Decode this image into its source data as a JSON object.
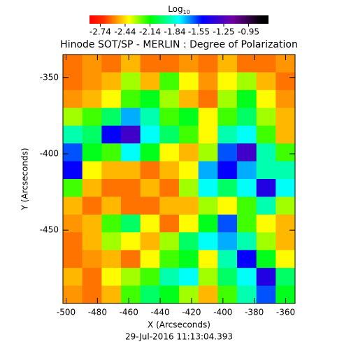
{
  "chart_data": {
    "type": "heatmap",
    "title": "Hinode SOT/SP - MERLIN : Degree of Polarization",
    "x_label": "X (Arcseconds)",
    "y_label": "Y (Arcseconds)",
    "footer": "29-Jul-2016 11:13:04.393",
    "colorbar_label": "Log",
    "colorbar_label_sub": "10",
    "colorbar_ticks": [
      -2.74,
      -2.44,
      -2.14,
      -1.84,
      -1.55,
      -1.25,
      -0.95
    ],
    "clim": [
      -2.87,
      -0.71
    ],
    "colormap": [
      [
        0,
        "#ff0000"
      ],
      [
        0.08,
        "#ff3000"
      ],
      [
        0.22,
        "#ffff00"
      ],
      [
        0.34,
        "#00ff00"
      ],
      [
        0.5,
        "#00ffff"
      ],
      [
        0.63,
        "#0000ff"
      ],
      [
        0.8,
        "#7000a0"
      ],
      [
        0.96,
        "#000000"
      ],
      [
        1,
        "#000000"
      ]
    ],
    "xlim": [
      -502,
      -354
    ],
    "ylim": [
      -498,
      -335
    ],
    "xticks": [
      -500,
      -480,
      -460,
      -440,
      -420,
      -400,
      -380,
      -360
    ],
    "yticks": [
      -350,
      -400,
      -450
    ],
    "z": [
      [
        -2.6,
        -2.55,
        -2.6,
        -2.5,
        -2.6,
        -2.6,
        -2.55,
        -2.6,
        -2.5,
        -2.6,
        -2.6,
        -2.55
      ],
      [
        -2.6,
        -2.55,
        -2.5,
        -2.3,
        -2.5,
        -2.2,
        -2.4,
        -2.55,
        -2.4,
        -2.3,
        -2.5,
        -2.6
      ],
      [
        -2.55,
        -2.5,
        -2.4,
        -2.2,
        -2.1,
        -2.3,
        -2.5,
        -2.6,
        -2.3,
        -2.1,
        -2.4,
        -2.55
      ],
      [
        -2.3,
        -2.2,
        -2.0,
        -1.7,
        -1.9,
        -2.2,
        -2.1,
        -2.4,
        -2.2,
        -2.0,
        -2.3,
        -2.5
      ],
      [
        -1.9,
        -2.0,
        -1.5,
        -1.3,
        -1.8,
        -2.0,
        -2.2,
        -2.4,
        -1.9,
        -1.8,
        -2.2,
        -2.5
      ],
      [
        -1.6,
        -2.1,
        -2.2,
        -1.8,
        -2.1,
        -2.4,
        -2.5,
        -2.3,
        -1.6,
        -1.3,
        -1.9,
        -2.2
      ],
      [
        -1.5,
        -2.4,
        -2.5,
        -2.5,
        -2.6,
        -2.5,
        -2.4,
        -1.7,
        -1.5,
        -1.7,
        -1.9,
        -1.9
      ],
      [
        -2.2,
        -2.5,
        -2.6,
        -2.6,
        -2.5,
        -2.6,
        -2.3,
        -1.8,
        -2.0,
        -1.8,
        -1.4,
        -1.8
      ],
      [
        -2.5,
        -2.6,
        -2.5,
        -2.6,
        -2.6,
        -2.5,
        -2.5,
        -2.3,
        -2.4,
        -2.2,
        -1.9,
        -2.3
      ],
      [
        -2.55,
        -2.5,
        -2.2,
        -2.0,
        -2.4,
        -2.6,
        -2.4,
        -2.1,
        -1.6,
        -2.2,
        -2.4,
        -2.5
      ],
      [
        -2.6,
        -2.5,
        -2.3,
        -2.4,
        -2.5,
        -2.3,
        -2.0,
        -1.8,
        -1.7,
        -1.9,
        -2.3,
        -2.5
      ],
      [
        -2.6,
        -2.55,
        -2.5,
        -2.6,
        -2.4,
        -2.2,
        -2.1,
        -2.4,
        -1.9,
        -1.5,
        -2.1,
        -2.4
      ],
      [
        -2.5,
        -2.6,
        -2.4,
        -2.3,
        -2.2,
        -1.9,
        -1.8,
        -2.3,
        -2.0,
        -1.8,
        -1.4,
        -2.0
      ],
      [
        -2.55,
        -2.6,
        -2.5,
        -2.2,
        -2.0,
        -2.1,
        -2.3,
        -2.5,
        -2.2,
        -1.9,
        -1.6,
        -2.1
      ]
    ]
  }
}
